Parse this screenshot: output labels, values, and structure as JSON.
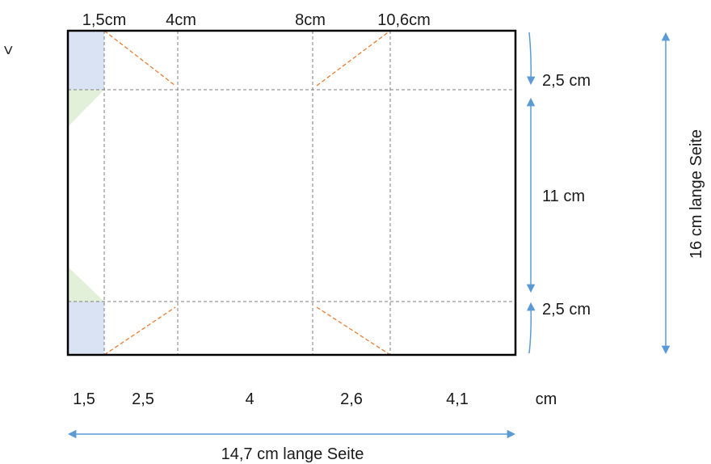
{
  "colors": {
    "outline": "#000000",
    "fold_line": "#7f7f7f",
    "diagonal": "#ed7d31",
    "flap_blue": "#dae3f3",
    "flap_green": "#e2f0d9",
    "arrow": "#5b9bd5",
    "text": "#1a1a1a"
  },
  "labels": {
    "corner_mark": "<",
    "top_positions": [
      "1,5cm",
      "4cm",
      "8cm",
      "10,6cm"
    ],
    "bottom_widths": [
      "1,5",
      "2,5",
      "4",
      "2,6",
      "4,1"
    ],
    "bottom_unit": "cm",
    "right_heights": [
      "2,5 cm",
      "11 cm",
      "2,5 cm"
    ],
    "long_side": "16 cm lange Seite",
    "width_side": "14,7 cm lange Seite"
  }
}
